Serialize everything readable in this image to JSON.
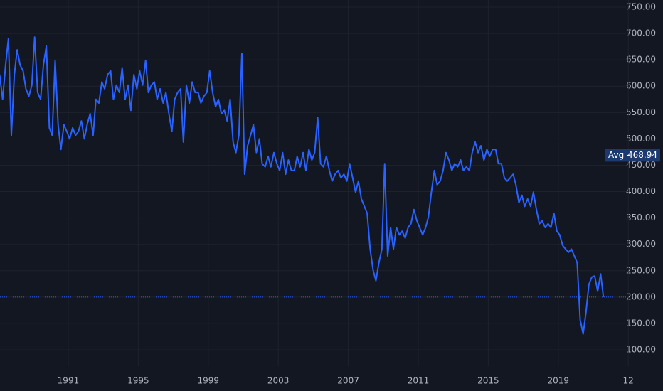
{
  "chart_data": {
    "type": "line",
    "x": [
      1987.08,
      1987.25,
      1987.42,
      1987.58,
      1987.75,
      1987.92,
      1988.08,
      1988.25,
      1988.42,
      1988.58,
      1988.75,
      1988.92,
      1989.08,
      1989.25,
      1989.42,
      1989.58,
      1989.75,
      1989.92,
      1990.08,
      1990.25,
      1990.42,
      1990.58,
      1990.75,
      1990.92,
      1991.08,
      1991.25,
      1991.42,
      1991.58,
      1991.75,
      1991.92,
      1992.08,
      1992.25,
      1992.42,
      1992.58,
      1992.75,
      1992.92,
      1993.08,
      1993.25,
      1993.42,
      1993.58,
      1993.75,
      1993.92,
      1994.08,
      1994.25,
      1994.42,
      1994.58,
      1994.75,
      1994.92,
      1995.08,
      1995.25,
      1995.42,
      1995.58,
      1995.75,
      1995.92,
      1996.08,
      1996.25,
      1996.42,
      1996.58,
      1996.75,
      1996.92,
      1997.08,
      1997.25,
      1997.42,
      1997.58,
      1997.75,
      1997.92,
      1998.08,
      1998.25,
      1998.42,
      1998.58,
      1998.75,
      1998.92,
      1999.08,
      1999.25,
      1999.42,
      1999.58,
      1999.75,
      1999.92,
      2000.08,
      2000.25,
      2000.42,
      2000.58,
      2000.75,
      2000.92,
      2001.08,
      2001.25,
      2001.42,
      2001.58,
      2001.75,
      2001.92,
      2002.08,
      2002.25,
      2002.42,
      2002.58,
      2002.75,
      2002.92,
      2003.08,
      2003.25,
      2003.42,
      2003.58,
      2003.75,
      2003.92,
      2004.08,
      2004.25,
      2004.42,
      2004.58,
      2004.75,
      2004.92,
      2005.08,
      2005.25,
      2005.42,
      2005.58,
      2005.75,
      2005.92,
      2006.08,
      2006.25,
      2006.42,
      2006.58,
      2006.75,
      2006.92,
      2007.08,
      2007.25,
      2007.42,
      2007.58,
      2007.75,
      2007.92,
      2008.08,
      2008.25,
      2008.42,
      2008.58,
      2008.75,
      2008.92,
      2009.08,
      2009.25,
      2009.42,
      2009.58,
      2009.75,
      2009.92,
      2010.08,
      2010.25,
      2010.42,
      2010.58,
      2010.75,
      2010.92,
      2011.08,
      2011.25,
      2011.42,
      2011.58,
      2011.75,
      2011.92,
      2012.08,
      2012.25,
      2012.42,
      2012.58,
      2012.75,
      2012.92,
      2013.08,
      2013.25,
      2013.42,
      2013.58,
      2013.75,
      2013.92,
      2014.08,
      2014.25,
      2014.42,
      2014.58,
      2014.75,
      2014.92,
      2015.08,
      2015.25,
      2015.42,
      2015.58,
      2015.75,
      2015.92,
      2016.08,
      2016.25,
      2016.42,
      2016.58,
      2016.75,
      2016.92,
      2017.08,
      2017.25,
      2017.42,
      2017.58,
      2017.75,
      2017.92,
      2018.08,
      2018.25,
      2018.42,
      2018.58,
      2018.75,
      2018.92,
      2019.08,
      2019.25,
      2019.42,
      2019.58,
      2019.75,
      2019.92,
      2020.08,
      2020.25,
      2020.42,
      2020.58,
      2020.75,
      2020.92,
      2021.08,
      2021.25,
      2021.42,
      2021.58
    ],
    "values": [
      622,
      575,
      640,
      690,
      507,
      622,
      669,
      640,
      629,
      595,
      581,
      602,
      693,
      588,
      575,
      640,
      676,
      521,
      507,
      649,
      527,
      480,
      527,
      514,
      500,
      521,
      507,
      514,
      534,
      500,
      527,
      548,
      507,
      575,
      568,
      608,
      595,
      622,
      629,
      575,
      602,
      588,
      635,
      575,
      602,
      554,
      622,
      595,
      629,
      602,
      649,
      588,
      602,
      608,
      575,
      595,
      568,
      588,
      548,
      514,
      575,
      588,
      595,
      494,
      602,
      568,
      608,
      588,
      588,
      568,
      581,
      588,
      629,
      588,
      561,
      575,
      548,
      554,
      534,
      575,
      494,
      474,
      507,
      662,
      433,
      487,
      507,
      527,
      474,
      500,
      453,
      447,
      467,
      447,
      474,
      453,
      440,
      474,
      433,
      460,
      440,
      440,
      467,
      447,
      474,
      440,
      480,
      460,
      474,
      541,
      453,
      447,
      467,
      440,
      420,
      433,
      440,
      426,
      433,
      420,
      453,
      426,
      399,
      420,
      386,
      372,
      359,
      291,
      251,
      231,
      265,
      291,
      453,
      278,
      332,
      291,
      332,
      318,
      325,
      312,
      332,
      339,
      366,
      345,
      332,
      318,
      332,
      352,
      399,
      440,
      413,
      420,
      440,
      474,
      460,
      440,
      453,
      447,
      460,
      440,
      447,
      440,
      474,
      494,
      474,
      487,
      460,
      480,
      467,
      480,
      480,
      453,
      453,
      426,
      420,
      426,
      433,
      413,
      379,
      393,
      372,
      386,
      372,
      399,
      366,
      339,
      345,
      332,
      339,
      332,
      359,
      325,
      318,
      298,
      291,
      285,
      291,
      278,
      265,
      157,
      130,
      170,
      224,
      238,
      240,
      211,
      244,
      200
    ],
    "color": "#2962ff",
    "xlim": [
      1987.1,
      2022.87
    ],
    "xticks": [
      1991,
      1995,
      1999,
      2003,
      2007,
      2011,
      2015,
      2019,
      {
        "value": 2023,
        "label": "12"
      }
    ],
    "ylim": [
      69,
      763.5
    ],
    "yticks": [
      {
        "value": 100,
        "label": "100.00"
      },
      {
        "value": 150,
        "label": "150.00"
      },
      {
        "value": 200,
        "label": "200.00"
      },
      {
        "value": 250,
        "label": "250.00"
      },
      {
        "value": 300,
        "label": "300.00"
      },
      {
        "value": 350,
        "label": "350.00"
      },
      {
        "value": 400,
        "label": "400.00"
      },
      {
        "value": 450,
        "label": "450.00"
      },
      {
        "value": 500,
        "label": "500.00"
      },
      {
        "value": 550,
        "label": "550.00"
      },
      {
        "value": 600,
        "label": "600.00"
      },
      {
        "value": 650,
        "label": "650.00"
      },
      {
        "value": 700,
        "label": "700.00"
      },
      {
        "value": 750,
        "label": "750.00"
      }
    ],
    "grid": true,
    "avg": {
      "label": "Avg",
      "value": 468.94
    }
  }
}
